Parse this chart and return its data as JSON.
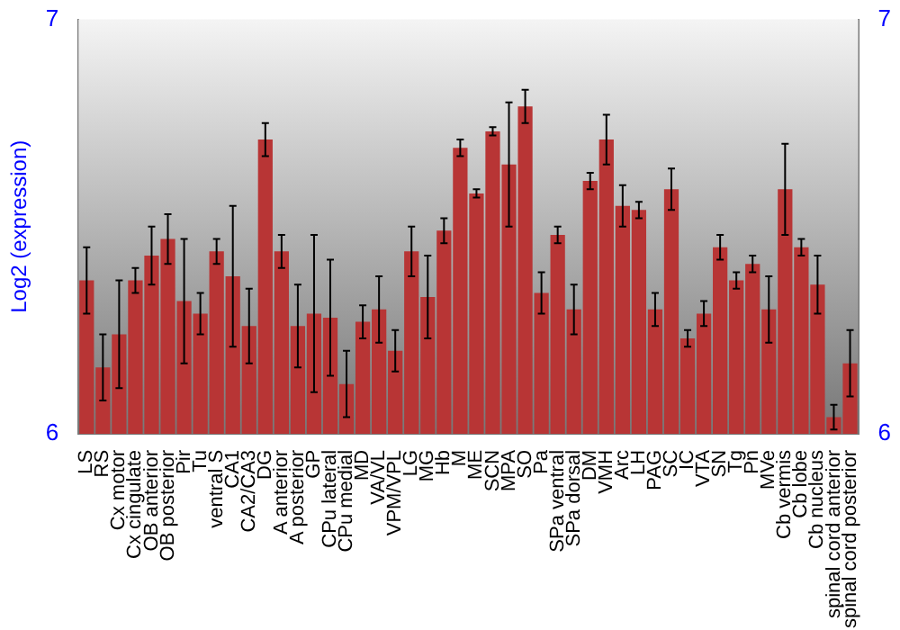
{
  "chart_data": {
    "type": "bar",
    "ylabel": "Log2 (expression)",
    "categories": [
      "LS",
      "RS",
      "Cx motor",
      "Cx cingulate",
      "OB anterior",
      "OB posterior",
      "Pir",
      "Tu",
      "ventral S",
      "CA1",
      "CA2/CA3",
      "DG",
      "A anterior",
      "A posterior",
      "GP",
      "CPu lateral",
      "CPu medial",
      "MD",
      "VA/VL",
      "VPM/VPL",
      "LG",
      "MG",
      "Hb",
      "M",
      "ME",
      "SCN",
      "MPA",
      "SO",
      "Pa",
      "SPa ventral",
      "SPa dorsal",
      "DM",
      "VMH",
      "Arc",
      "LH",
      "PAG",
      "SC",
      "IC",
      "VTA",
      "SN",
      "Tg",
      "Pn",
      "MVe",
      "Cb vermis",
      "Cb lobe",
      "Cb nucleus",
      "spinal cord anterior",
      "spinal cord posterior"
    ],
    "values": [
      6.37,
      6.16,
      6.24,
      6.37,
      6.43,
      6.47,
      6.32,
      6.29,
      6.44,
      6.38,
      6.26,
      6.71,
      6.44,
      6.26,
      6.29,
      6.28,
      6.12,
      6.27,
      6.3,
      6.2,
      6.44,
      6.33,
      6.49,
      6.69,
      6.58,
      6.73,
      6.65,
      6.79,
      6.34,
      6.48,
      6.3,
      6.61,
      6.71,
      6.55,
      6.54,
      6.3,
      6.59,
      6.23,
      6.29,
      6.45,
      6.37,
      6.41,
      6.3,
      6.59,
      6.45,
      6.36,
      6.04,
      6.17
    ],
    "errors": [
      0.08,
      0.08,
      0.13,
      0.03,
      0.07,
      0.06,
      0.15,
      0.05,
      0.03,
      0.17,
      0.09,
      0.04,
      0.04,
      0.1,
      0.19,
      0.14,
      0.08,
      0.04,
      0.08,
      0.05,
      0.06,
      0.1,
      0.03,
      0.02,
      0.01,
      0.01,
      0.15,
      0.04,
      0.05,
      0.02,
      0.06,
      0.02,
      0.06,
      0.05,
      0.02,
      0.04,
      0.05,
      0.02,
      0.03,
      0.03,
      0.02,
      0.02,
      0.08,
      0.11,
      0.02,
      0.07,
      0.03,
      0.08
    ],
    "color": "#b83535",
    "ylim": [
      6,
      7
    ],
    "yticks": [
      6,
      7
    ],
    "y2lim": [
      6,
      7
    ],
    "y2ticks": [
      6,
      7
    ],
    "grid": false,
    "legend": false
  }
}
